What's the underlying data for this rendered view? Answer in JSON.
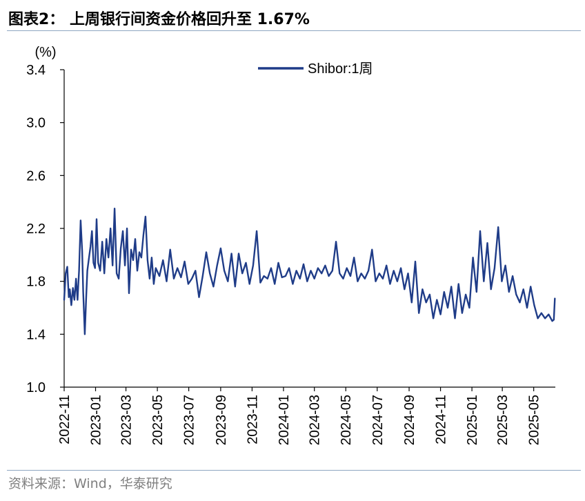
{
  "header": {
    "title": "图表2：  上周银行间资金价格回升至 1.67%"
  },
  "footer": {
    "source": "资料来源：Wind，华泰研究"
  },
  "colors": {
    "line": "#1f3c88",
    "axis": "#000000",
    "rule": "#8ea5c0"
  },
  "chart_data": {
    "type": "line",
    "title": "上周银行间资金价格回升至 1.67%",
    "ylabel": "(%)",
    "ylim": [
      1.0,
      3.4
    ],
    "yticks": [
      "1.0",
      "1.4",
      "1.8",
      "2.2",
      "2.6",
      "3.0",
      "3.4"
    ],
    "xlim": [
      "2022-11-01",
      "2025-06-12"
    ],
    "xticks": [
      "2022-11",
      "2023-01",
      "2023-03",
      "2023-05",
      "2023-07",
      "2023-09",
      "2023-11",
      "2024-01",
      "2024-03",
      "2024-05",
      "2024-07",
      "2024-09",
      "2024-11",
      "2025-01",
      "2025-03",
      "2025-05"
    ],
    "grid": false,
    "legend": "top-center",
    "series": [
      {
        "name": "Shibor:1周",
        "x": [
          "2022-11-01",
          "2022-11-04",
          "2022-11-07",
          "2022-11-10",
          "2022-11-12",
          "2022-11-15",
          "2022-11-18",
          "2022-11-21",
          "2022-11-24",
          "2022-11-27",
          "2022-11-30",
          "2022-12-03",
          "2022-12-06",
          "2022-12-08",
          "2022-12-11",
          "2022-12-14",
          "2022-12-16",
          "2022-12-19",
          "2022-12-22",
          "2022-12-25",
          "2022-12-28",
          "2022-12-31",
          "2023-01-03",
          "2023-01-06",
          "2023-01-10",
          "2023-01-14",
          "2023-01-18",
          "2023-01-22",
          "2023-01-26",
          "2023-01-30",
          "2023-02-03",
          "2023-02-07",
          "2023-02-11",
          "2023-02-15",
          "2023-02-19",
          "2023-02-23",
          "2023-02-27",
          "2023-03-03",
          "2023-03-07",
          "2023-03-11",
          "2023-03-15",
          "2023-03-19",
          "2023-03-23",
          "2023-03-27",
          "2023-03-31",
          "2023-04-04",
          "2023-04-08",
          "2023-04-12",
          "2023-04-16",
          "2023-04-20",
          "2023-04-24",
          "2023-04-28",
          "2023-05-05",
          "2023-05-12",
          "2023-05-19",
          "2023-05-26",
          "2023-06-02",
          "2023-06-09",
          "2023-06-16",
          "2023-06-23",
          "2023-06-30",
          "2023-07-07",
          "2023-07-14",
          "2023-07-21",
          "2023-07-28",
          "2023-08-04",
          "2023-08-11",
          "2023-08-18",
          "2023-08-25",
          "2023-09-01",
          "2023-09-08",
          "2023-09-15",
          "2023-09-22",
          "2023-09-29",
          "2023-10-06",
          "2023-10-13",
          "2023-10-20",
          "2023-10-27",
          "2023-11-03",
          "2023-11-10",
          "2023-11-17",
          "2023-11-24",
          "2023-12-01",
          "2023-12-08",
          "2023-12-15",
          "2023-12-22",
          "2023-12-29",
          "2024-01-05",
          "2024-01-12",
          "2024-01-19",
          "2024-01-26",
          "2024-02-02",
          "2024-02-09",
          "2024-02-16",
          "2024-02-23",
          "2024-03-01",
          "2024-03-08",
          "2024-03-15",
          "2024-03-22",
          "2024-03-29",
          "2024-04-05",
          "2024-04-12",
          "2024-04-19",
          "2024-04-26",
          "2024-05-03",
          "2024-05-10",
          "2024-05-17",
          "2024-05-24",
          "2024-05-31",
          "2024-06-07",
          "2024-06-14",
          "2024-06-21",
          "2024-06-28",
          "2024-07-05",
          "2024-07-12",
          "2024-07-19",
          "2024-07-26",
          "2024-08-02",
          "2024-08-09",
          "2024-08-16",
          "2024-08-23",
          "2024-08-30",
          "2024-09-06",
          "2024-09-13",
          "2024-09-20",
          "2024-09-27",
          "2024-10-04",
          "2024-10-11",
          "2024-10-18",
          "2024-10-25",
          "2024-11-01",
          "2024-11-08",
          "2024-11-15",
          "2024-11-22",
          "2024-11-29",
          "2024-12-06",
          "2024-12-13",
          "2024-12-20",
          "2024-12-27",
          "2025-01-03",
          "2025-01-10",
          "2025-01-17",
          "2025-01-24",
          "2025-01-31",
          "2025-02-07",
          "2025-02-14",
          "2025-02-21",
          "2025-02-28",
          "2025-03-07",
          "2025-03-14",
          "2025-03-21",
          "2025-03-28",
          "2025-04-04",
          "2025-04-11",
          "2025-04-18",
          "2025-04-25",
          "2025-05-02",
          "2025-05-09",
          "2025-05-16",
          "2025-05-23",
          "2025-05-30",
          "2025-06-06",
          "2025-06-09",
          "2025-06-11"
        ],
        "values": [
          1.66,
          1.86,
          1.91,
          1.68,
          1.74,
          1.62,
          1.75,
          1.66,
          1.82,
          1.66,
          1.88,
          2.26,
          2.03,
          1.72,
          1.4,
          1.7,
          1.88,
          1.97,
          2.06,
          2.18,
          1.94,
          1.9,
          2.27,
          1.94,
          1.88,
          2.1,
          1.86,
          2.12,
          1.98,
          2.2,
          1.92,
          2.35,
          1.86,
          1.82,
          2.05,
          2.18,
          1.92,
          2.2,
          1.71,
          2.04,
          1.96,
          2.12,
          1.88,
          2.02,
          1.98,
          2.15,
          2.29,
          1.96,
          1.82,
          1.98,
          1.78,
          1.9,
          1.84,
          1.96,
          1.8,
          2.04,
          1.82,
          1.9,
          1.83,
          1.95,
          1.78,
          1.82,
          1.88,
          1.68,
          1.84,
          2.02,
          1.86,
          1.76,
          1.92,
          2.05,
          1.88,
          1.8,
          2.01,
          1.76,
          2.01,
          1.86,
          1.94,
          1.78,
          1.92,
          2.18,
          1.79,
          1.84,
          1.82,
          1.9,
          1.78,
          1.94,
          1.83,
          1.84,
          1.9,
          1.78,
          1.88,
          1.82,
          1.93,
          1.8,
          1.88,
          1.82,
          1.9,
          1.86,
          1.92,
          1.84,
          1.88,
          2.1,
          1.86,
          1.82,
          1.9,
          1.84,
          1.98,
          1.8,
          1.86,
          1.82,
          1.88,
          2.04,
          1.8,
          1.86,
          1.82,
          1.92,
          1.78,
          1.88,
          1.8,
          1.9,
          1.74,
          1.86,
          1.64,
          1.95,
          1.56,
          1.74,
          1.64,
          1.7,
          1.52,
          1.66,
          1.55,
          1.72,
          1.6,
          1.76,
          1.52,
          1.78,
          1.56,
          1.7,
          1.6,
          1.98,
          1.72,
          2.18,
          1.8,
          2.09,
          1.74,
          1.9,
          2.21,
          1.8,
          1.92,
          1.72,
          1.84,
          1.7,
          1.64,
          1.74,
          1.6,
          1.76,
          1.62,
          1.52,
          1.56,
          1.52,
          1.55,
          1.5,
          1.51,
          1.67
        ]
      }
    ]
  }
}
